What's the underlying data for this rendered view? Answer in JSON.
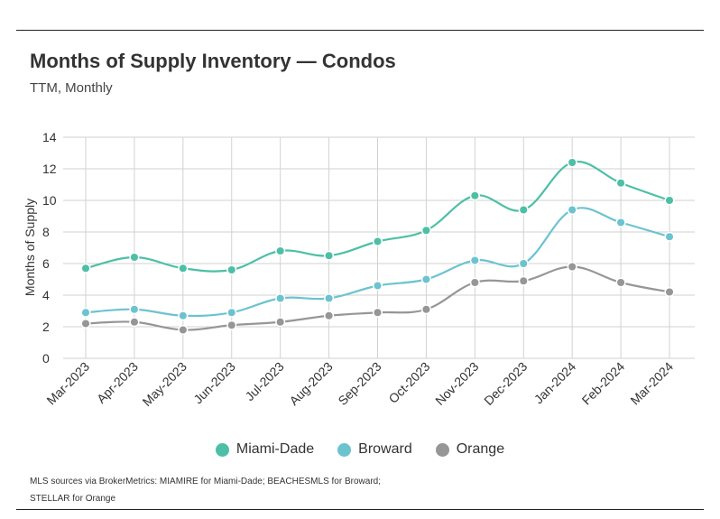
{
  "header": {
    "title": "Months of Supply Inventory — Condos",
    "subtitle": "TTM, Monthly"
  },
  "footer": {
    "source_line1": "MLS sources via BrokerMetrics: MIAMIRE for Miami-Dade; BEACHESMLS for Broward;",
    "source_line2": "STELLAR for Orange"
  },
  "chart_data": {
    "type": "line",
    "title": "Months of Supply Inventory — Condos",
    "subtitle": "TTM, Monthly",
    "xlabel": "",
    "ylabel": "Months of Supply",
    "ylim": [
      0,
      14
    ],
    "yticks": [
      0,
      2,
      4,
      6,
      8,
      10,
      12,
      14
    ],
    "grid": true,
    "smooth": true,
    "legend_position": "bottom",
    "categories": [
      "Mar-2023",
      "Apr-2023",
      "May-2023",
      "Jun-2023",
      "Jul-2023",
      "Aug-2023",
      "Sep-2023",
      "Oct-2023",
      "Nov-2023",
      "Dec-2023",
      "Jan-2024",
      "Feb-2024",
      "Mar-2024"
    ],
    "series": [
      {
        "name": "Miami-Dade",
        "color": "#4dbfa6",
        "values": [
          5.7,
          6.4,
          5.7,
          5.6,
          6.8,
          6.5,
          7.4,
          8.1,
          10.3,
          9.4,
          12.4,
          11.1,
          10.0
        ]
      },
      {
        "name": "Broward",
        "color": "#6cc3d0",
        "values": [
          2.9,
          3.1,
          2.7,
          2.9,
          3.8,
          3.8,
          4.6,
          5.0,
          6.2,
          6.0,
          9.4,
          8.6,
          7.7
        ]
      },
      {
        "name": "Orange",
        "color": "#969696",
        "values": [
          2.2,
          2.3,
          1.8,
          2.1,
          2.3,
          2.7,
          2.9,
          3.1,
          4.8,
          4.9,
          5.8,
          4.8,
          4.2
        ]
      }
    ]
  }
}
